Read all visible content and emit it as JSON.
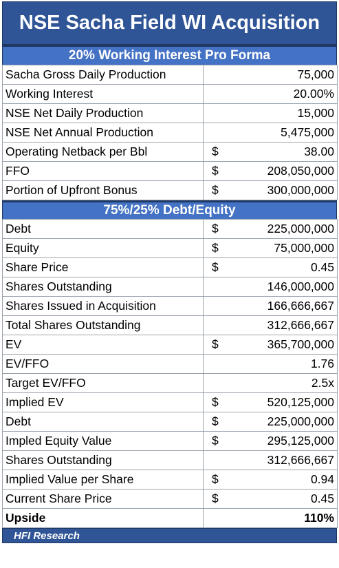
{
  "title": "NSE Sacha Field WI Acquisition",
  "section1": {
    "header": "20% Working Interest Pro Forma",
    "rows": [
      {
        "label": "Sacha Gross Daily Production",
        "currency": "",
        "value": "75,000"
      },
      {
        "label": "Working Interest",
        "currency": "",
        "value": "20.00%"
      },
      {
        "label": "NSE Net Daily Production",
        "currency": "",
        "value": "15,000"
      },
      {
        "label": "NSE Net Annual Production",
        "currency": "",
        "value": "5,475,000"
      },
      {
        "label": "Operating Netback per Bbl",
        "currency": "$",
        "value": "38.00"
      },
      {
        "label": "FFO",
        "currency": "$",
        "value": "208,050,000"
      },
      {
        "label": "Portion of Upfront Bonus",
        "currency": "$",
        "value": "300,000,000"
      }
    ]
  },
  "section2": {
    "header": "75%/25% Debt/Equity",
    "rows": [
      {
        "label": "Debt",
        "currency": "$",
        "value": "225,000,000"
      },
      {
        "label": "Equity",
        "currency": "$",
        "value": "75,000,000"
      },
      {
        "label": "Share Price",
        "currency": "$",
        "value": "0.45"
      },
      {
        "label": "Shares Outstanding",
        "currency": "",
        "value": "146,000,000"
      },
      {
        "label": "Shares Issued in Acquisition",
        "currency": "",
        "value": "166,666,667"
      },
      {
        "label": "Total Shares Outstanding",
        "currency": "",
        "value": "312,666,667"
      },
      {
        "label": "EV",
        "currency": "$",
        "value": "365,700,000"
      },
      {
        "label": "EV/FFO",
        "currency": "",
        "value": "1.76"
      },
      {
        "label": "Target EV/FFO",
        "currency": "",
        "value": "2.5x"
      },
      {
        "label": "Implied EV",
        "currency": "$",
        "value": "520,125,000"
      },
      {
        "label": "Debt",
        "currency": "$",
        "value": "225,000,000"
      },
      {
        "label": "Impled Equity Value",
        "currency": "$",
        "value": "295,125,000"
      },
      {
        "label": "Shares Outstanding",
        "currency": "",
        "value": "312,666,667"
      },
      {
        "label": "Implied Value per Share",
        "currency": "$",
        "value": "0.94"
      },
      {
        "label": "Current Share Price",
        "currency": "$",
        "value": "0.45"
      },
      {
        "label": "Upside",
        "currency": "",
        "value": "110%",
        "bold": true
      }
    ]
  },
  "footer": "HFI Research",
  "colors": {
    "title_bg": "#2f5597",
    "section_bg": "#4472c4",
    "border": "#9aa3ad"
  }
}
